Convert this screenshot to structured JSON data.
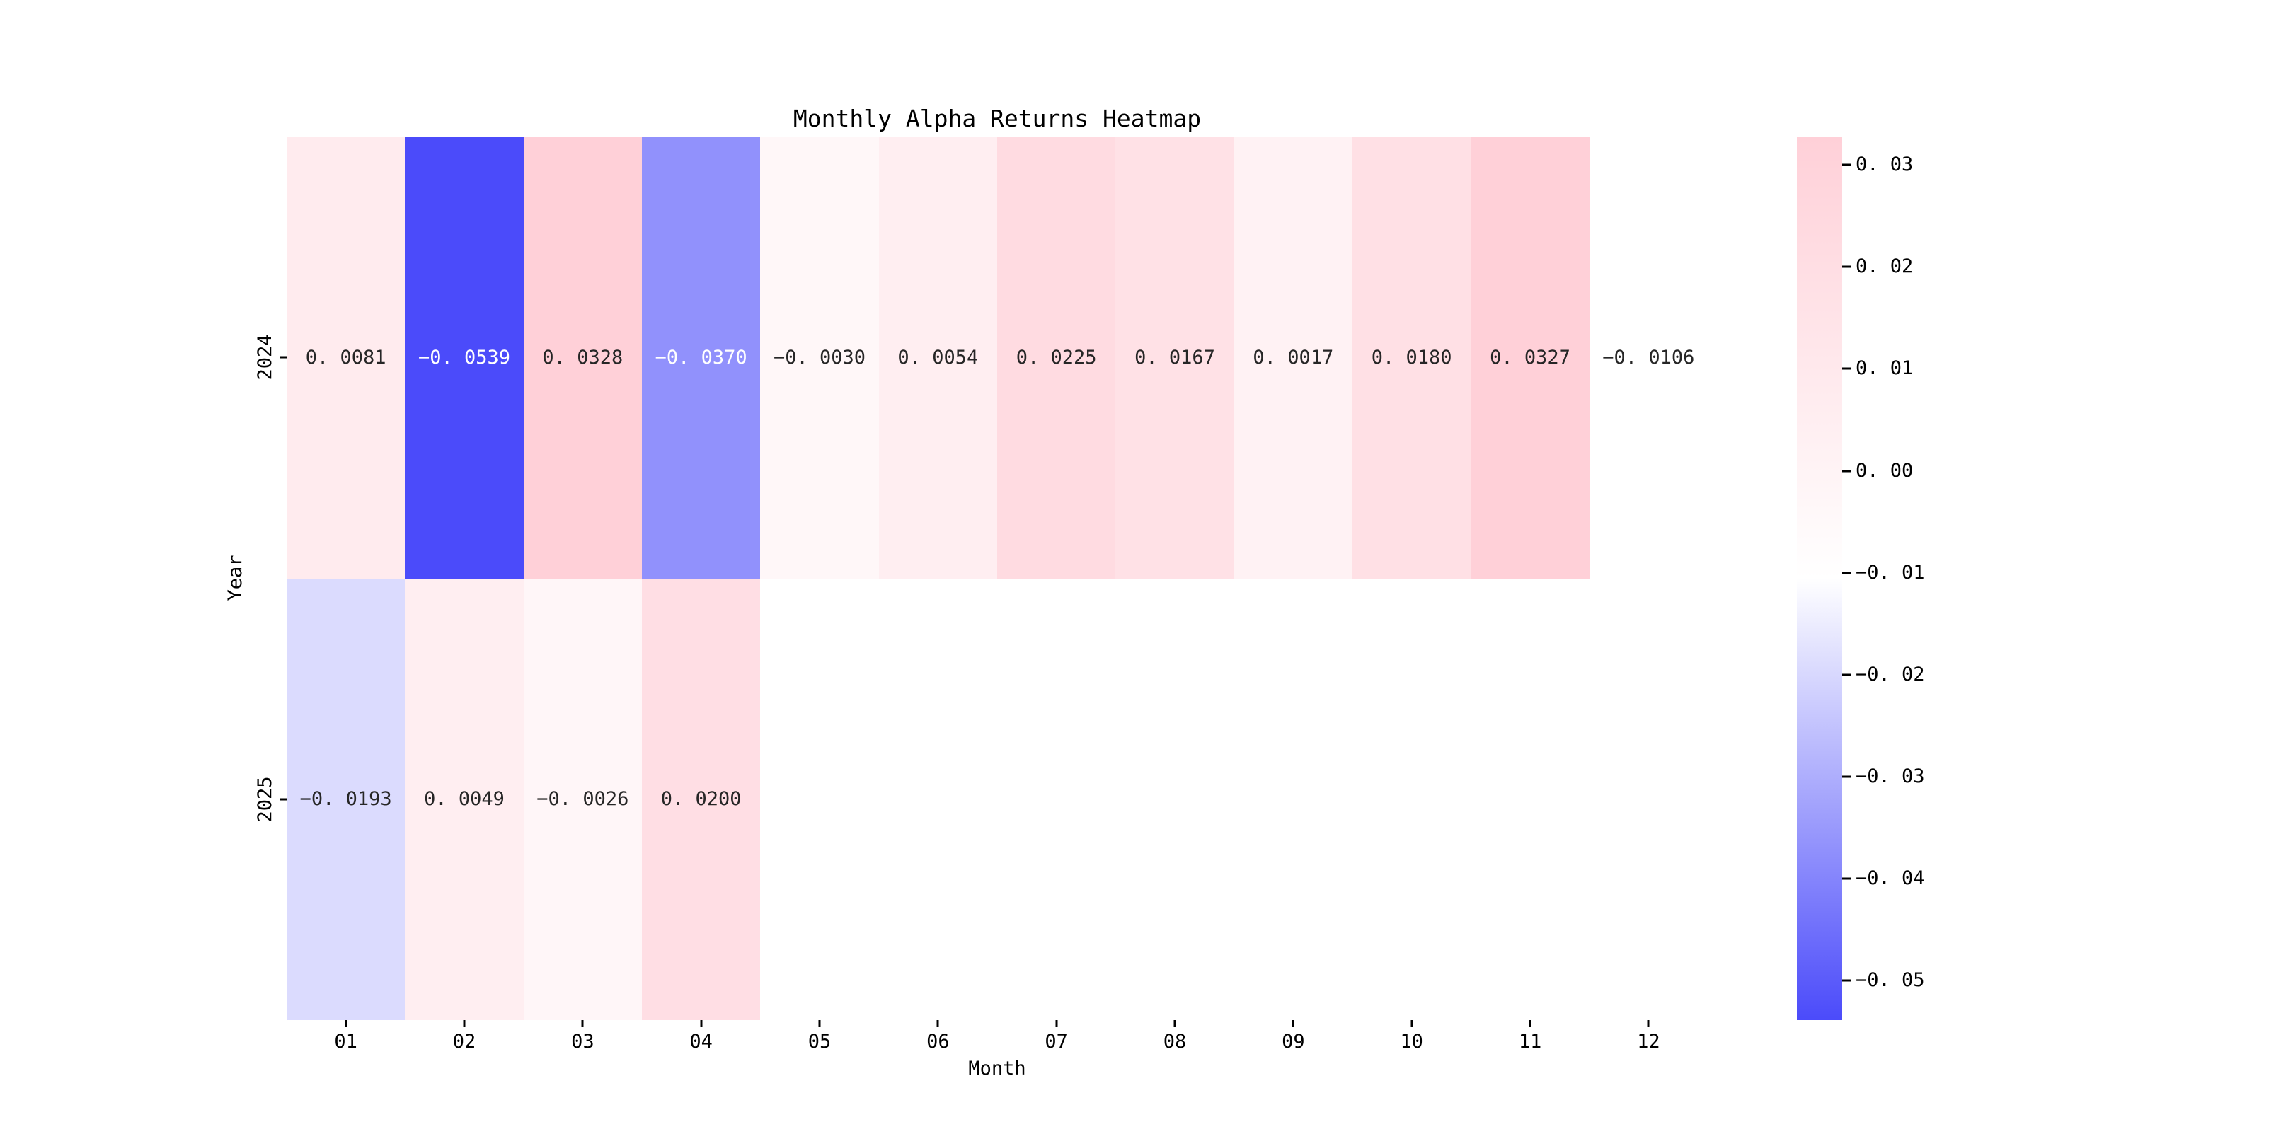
{
  "title": "Monthly Alpha Returns Heatmap",
  "axes": {
    "x_label": "Month",
    "y_label": "Year"
  },
  "chart_data": {
    "type": "heatmap",
    "title": "Monthly Alpha Returns Heatmap",
    "xlabel": "Month",
    "ylabel": "Year",
    "x_categories": [
      "01",
      "02",
      "03",
      "04",
      "05",
      "06",
      "07",
      "08",
      "09",
      "10",
      "11",
      "12"
    ],
    "y_categories": [
      "2024",
      "2025"
    ],
    "rows": [
      {
        "year": "2024",
        "values": [
          0.0081,
          -0.0539,
          0.0328,
          -0.037,
          -0.003,
          0.0054,
          0.0225,
          0.0167,
          0.0017,
          0.018,
          0.0327,
          -0.0106
        ],
        "labels": [
          "0. 0081",
          "−0. 0539",
          "0. 0328",
          "−0. 0370",
          "−0. 0030",
          "0. 0054",
          "0. 0225",
          "0. 0167",
          "0. 0017",
          "0. 0180",
          "0. 0327",
          "−0. 0106"
        ]
      },
      {
        "year": "2025",
        "values": [
          -0.0193,
          0.0049,
          -0.0026,
          0.02,
          null,
          null,
          null,
          null,
          null,
          null,
          null,
          null
        ],
        "labels": [
          "−0. 0193",
          "0. 0049",
          "−0. 0026",
          "0. 0200",
          "",
          "",
          "",
          "",
          "",
          "",
          "",
          ""
        ]
      }
    ],
    "color_scale": {
      "vmin": -0.0539,
      "vmax": 0.0328,
      "min_color": "#4B4BFA",
      "mid_color": "#FFFFFF",
      "max_color": "#FFD0D8",
      "nan_color": "#FFFFFF",
      "dark_text_color": "#262626",
      "light_text_color": "#FFFFFF"
    },
    "colorbar": {
      "ticks": [
        {
          "value": 0.03,
          "label": "0. 03"
        },
        {
          "value": 0.02,
          "label": "0. 02"
        },
        {
          "value": 0.01,
          "label": "0. 01"
        },
        {
          "value": 0.0,
          "label": "0. 00"
        },
        {
          "value": -0.01,
          "label": "−0. 01"
        },
        {
          "value": -0.02,
          "label": "−0. 02"
        },
        {
          "value": -0.03,
          "label": "−0. 03"
        },
        {
          "value": -0.04,
          "label": "−0. 04"
        },
        {
          "value": -0.05,
          "label": "−0. 05"
        }
      ]
    }
  }
}
